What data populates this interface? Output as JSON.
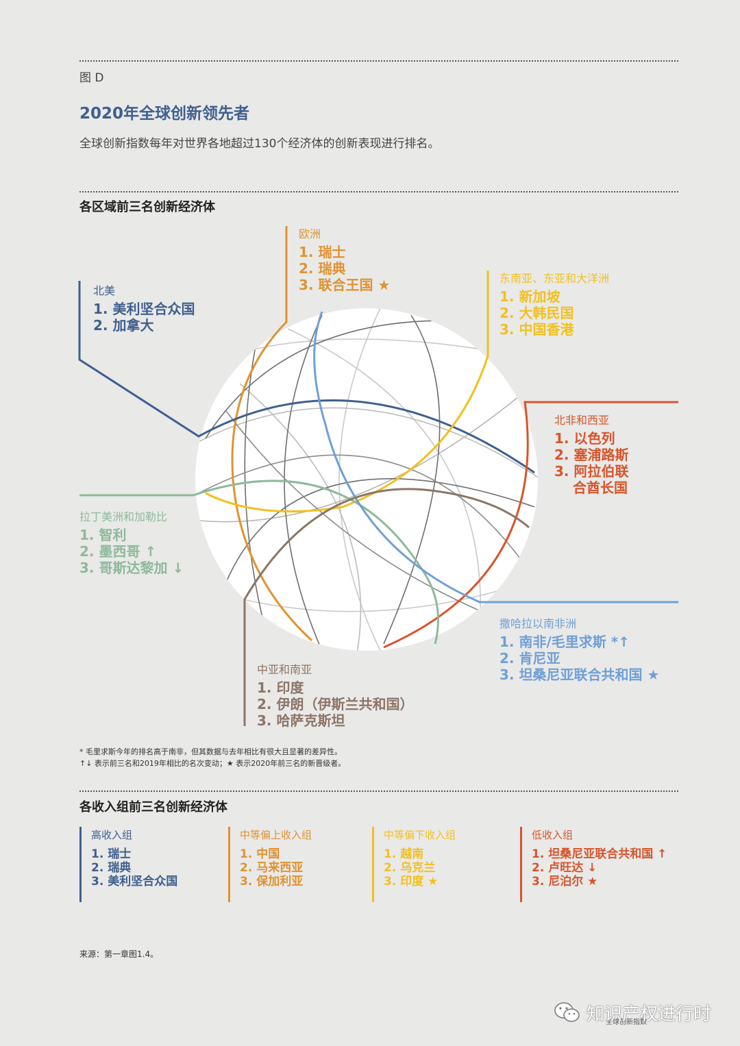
{
  "figure_label": "图 D",
  "title": "2020年全球创新领先者",
  "description": "全球创新指数每年对世界各地超过130个经济体的创新表现进行排名。",
  "regional_section_title": "各区域前三名创新经济体",
  "regions": {
    "europe": {
      "name": "欧洲",
      "items": [
        "1. 瑞士",
        "2. 瑞典",
        "3. 联合王国 ★"
      ],
      "color": "#e0922f"
    },
    "north_america": {
      "name": "北美",
      "items": [
        "1. 美利坚合众国",
        "2. 加拿大"
      ],
      "color": "#3f5f8e"
    },
    "asia_pacific": {
      "name": "东南亚、东亚和大洋洲",
      "items": [
        "1. 新加坡",
        "2. 大韩民国",
        "3. 中国香港"
      ],
      "color": "#f2c01e"
    },
    "nafrica_wasia": {
      "name": "北非和西亚",
      "items": [
        "1. 以色列",
        "2. 塞浦路斯",
        "3. 阿拉伯联",
        "合酋长国"
      ],
      "color": "#d9542b"
    },
    "latam": {
      "name": "拉丁美洲和加勒比",
      "items": [
        "1. 智利",
        "2. 墨西哥 ↑",
        "3. 哥斯达黎加 ↓"
      ],
      "color": "#8fb99a"
    },
    "subsaharan": {
      "name": "撒哈拉以南非洲",
      "items": [
        "1. 南非/毛里求斯 *↑",
        "2. 肯尼亚",
        "3. 坦桑尼亚联合共和国 ★"
      ],
      "color": "#6f9fd6"
    },
    "central_south_asia": {
      "name": "中亚和南亚",
      "items": [
        "1. 印度",
        "2. 伊朗（伊斯兰共和国）",
        "3. 哈萨克斯坦"
      ],
      "color": "#8c7566"
    }
  },
  "notes": [
    "* 毛里求斯今年的排名高于南非，但其数据与去年相比有很大且显著的差异性。",
    "↑↓ 表示前三名和2019年相比的名次变动；★ 表示2020年前三名的新晋级者。"
  ],
  "income_section_title": "各收入组前三名创新经济体",
  "income_groups": [
    {
      "name": "高收入组",
      "items": [
        "1. 瑞士",
        "2. 瑞典",
        "3. 美利坚合众国"
      ],
      "color": "#3f5f8e"
    },
    {
      "name": "中等偏上收入组",
      "items": [
        "1. 中国",
        "2. 马来西亚",
        "3. 保加利亚"
      ],
      "color": "#e0922f"
    },
    {
      "name": "中等偏下收入组",
      "items": [
        "1. 越南",
        "2. 乌克兰",
        "3. 印度 ★"
      ],
      "color": "#f2c01e"
    },
    {
      "name": "低收入组",
      "items": [
        "1. 坦桑尼亚联合共和国 ↑",
        "2. 卢旺达 ↓",
        "3. 尼泊尔 ★"
      ],
      "color": "#d9542b"
    }
  ],
  "source": "来源：第一章图1.4。",
  "watermark": "知识产权进行时",
  "page_footer": "全球创新指数"
}
